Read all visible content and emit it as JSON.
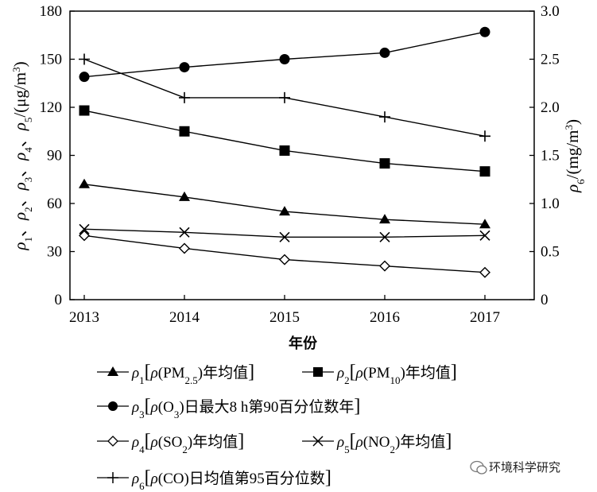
{
  "chart_data": {
    "type": "line",
    "x": [
      2013,
      2014,
      2015,
      2016,
      2017
    ],
    "xlabel": "年份",
    "ylabel_left": "ρ1、ρ2、ρ3、ρ4、ρ5/(μg/m3)",
    "ylabel_right": "ρ6/(mg/m3)",
    "ylim_left": [
      0,
      180
    ],
    "ylim_right": [
      0,
      3.0
    ],
    "yticks_left": [
      "0",
      "30",
      "60",
      "90",
      "120",
      "150",
      "180"
    ],
    "yticks_right": [
      "0",
      "0.5",
      "1.0",
      "1.5",
      "2.0",
      "2.5",
      "3.0"
    ],
    "xticks": [
      "2013",
      "2014",
      "2015",
      "2016",
      "2017"
    ],
    "grid": false,
    "legend_position": "bottom",
    "series": [
      {
        "name": "ρ1[ρ(PM2.5)年均值]",
        "marker": "triangle",
        "axis": "left",
        "values": [
          72,
          64,
          55,
          50,
          47
        ]
      },
      {
        "name": "ρ2[ρ(PM10)年均值]",
        "marker": "square",
        "axis": "left",
        "values": [
          118,
          105,
          93,
          85,
          80
        ]
      },
      {
        "name": "ρ3[ρ(O3)日最大8 h第90百分位数年]",
        "marker": "circle",
        "axis": "left",
        "values": [
          139,
          145,
          150,
          154,
          167
        ]
      },
      {
        "name": "ρ4[ρ(SO2)年均值]",
        "marker": "diamond",
        "axis": "left",
        "values": [
          40,
          32,
          25,
          21,
          17
        ]
      },
      {
        "name": "ρ5[ρ(NO2)年均值]",
        "marker": "x",
        "axis": "left",
        "values": [
          44,
          42,
          39,
          39,
          40
        ]
      },
      {
        "name": "ρ6[ρ(CO)日均值第95百分位数]",
        "marker": "plus",
        "axis": "right",
        "values": [
          2.5,
          2.1,
          2.1,
          1.9,
          1.7
        ]
      }
    ]
  },
  "watermark": "环境科学研究"
}
